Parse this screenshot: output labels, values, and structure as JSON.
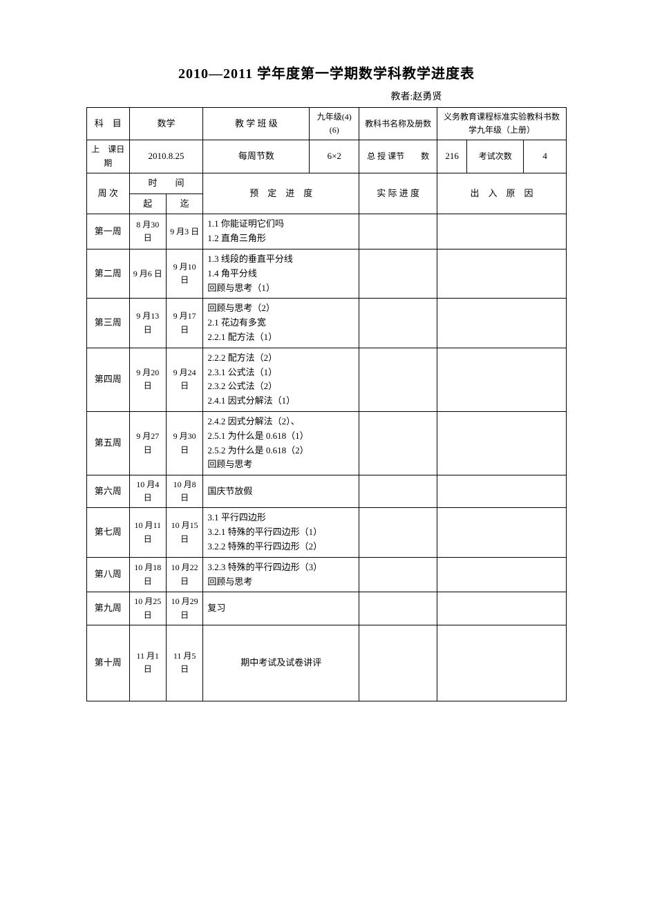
{
  "title": "2010—2011 学年度第一学期数学科教学进度表",
  "author": "教者:赵勇贤",
  "head": {
    "subject_label": "科　目",
    "subject_value": "数学",
    "class_label": "教 学 班 级",
    "class_value": "九年级(4)(6)",
    "book_label": "教科书名称及册数",
    "book_value": "义务教育课程标准实验教科书数学九年级（上册）",
    "start_label": "上　课日　期",
    "start_value": "2010.8.25",
    "perweek_label": "每周节数",
    "perweek_value": "6×2",
    "total_label": "总 授 课节　　数",
    "total_value": "216",
    "exam_label": "考试次数",
    "exam_value": "4",
    "week_label": "周 次",
    "time_label": "时　　间",
    "from_label": "起",
    "to_label": "迄",
    "plan_label": "预　定　进　度",
    "actual_label": "实 际 进 度",
    "reason_label": "出　入　原　因"
  },
  "rows": [
    {
      "wk": "第一周",
      "from": "8 月30 日",
      "to": "9 月3 日",
      "plan": "1.1 你能证明它们吗\n1.2 直角三角形"
    },
    {
      "wk": "第二周",
      "from": "9 月6 日",
      "to": "9 月10 日",
      "plan": "1.3 线段的垂直平分线\n1.4 角平分线\n回顾与思考（1）"
    },
    {
      "wk": "第三周",
      "from": "9 月13 日",
      "to": "9 月17 日",
      "plan": "回顾与思考（2）\n2.1 花边有多宽\n2.2.1 配方法（1）"
    },
    {
      "wk": "第四周",
      "from": "9 月20 日",
      "to": "9 月24 日",
      "plan": "2.2.2 配方法（2）\n2.3.1 公式法（1）\n2.3.2 公式法（2）\n2.4.1 因式分解法（1）"
    },
    {
      "wk": "第五周",
      "from": "9 月27 日",
      "to": "9 月30 日",
      "plan": "2.4.2 因式分解法（2）、\n2.5.1 为什么是 0.618（1）\n2.5.2 为什么是 0.618（2）\n回顾与思考"
    },
    {
      "wk": "第六周",
      "from": "10 月4 日",
      "to": "10 月8 日",
      "plan": "国庆节放假"
    },
    {
      "wk": "第七周",
      "from": "10 月11 日",
      "to": "10 月15 日",
      "plan": "3.1 平行四边形\n3.2.1 特殊的平行四边形（1）\n3.2.2 特殊的平行四边形（2）"
    },
    {
      "wk": "第八周",
      "from": "10 月18 日",
      "to": "10 月22 日",
      "plan": "3.2.3 特殊的平行四边形（3）\n回顾与思考"
    },
    {
      "wk": "第九周",
      "from": "10 月25 日",
      "to": "10 月29 日",
      "plan": "复习"
    },
    {
      "wk": "第十周",
      "from": "11 月1 日",
      "to": "11 月5 日",
      "plan": "期中考试及试卷讲评"
    }
  ]
}
